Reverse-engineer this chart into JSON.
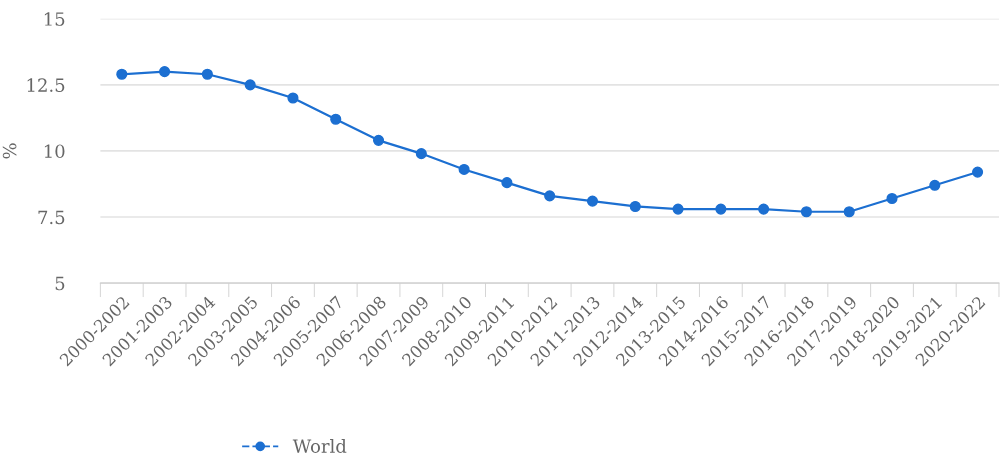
{
  "chart_data": {
    "type": "line",
    "ylabel": "%",
    "categories": [
      "2000-2002",
      "2001-2003",
      "2002-2004",
      "2003-2005",
      "2004-2006",
      "2005-2007",
      "2006-2008",
      "2007-2009",
      "2008-2010",
      "2009-2011",
      "2010-2012",
      "2011-2013",
      "2012-2014",
      "2013-2015",
      "2014-2016",
      "2015-2017",
      "2016-2018",
      "2017-2019",
      "2018-2020",
      "2019-2021",
      "2020-2022"
    ],
    "series": [
      {
        "name": "World",
        "color": "#1c6fd1",
        "values": [
          12.9,
          13.0,
          12.9,
          12.5,
          12.0,
          11.2,
          10.4,
          9.9,
          9.3,
          8.8,
          8.3,
          8.1,
          7.9,
          7.8,
          7.8,
          7.8,
          7.7,
          7.7,
          8.2,
          8.7,
          9.2
        ]
      }
    ],
    "ylim": [
      5,
      15
    ],
    "yticks": [
      5,
      {
        "value": 7.5,
        "label": "7.5"
      },
      10,
      {
        "value": 12.5,
        "label": "12.5"
      },
      15
    ],
    "grid": "y",
    "legend": "bottom",
    "marker": "circle",
    "line_style": "solid"
  }
}
